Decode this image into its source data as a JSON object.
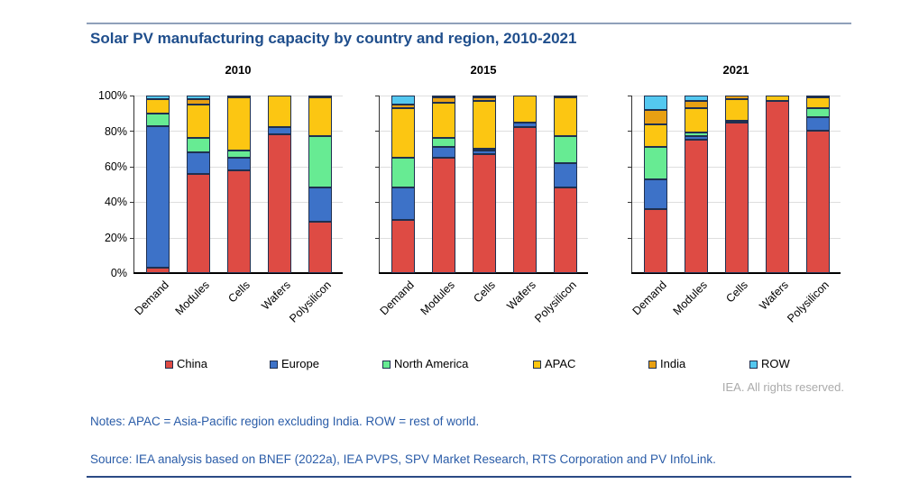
{
  "title": "Solar PV manufacturing capacity by country and region, 2010-2021",
  "copyright": "IEA. All rights reserved.",
  "notes": "Notes: APAC = Asia-Pacific region excluding India. ROW = rest of world.",
  "source": "Source: IEA analysis based on BNEF (2022a), IEA PVPS, SPV Market Research, RTS Corporation and PV InfoLink.",
  "legend": {
    "items": [
      {
        "label": "China",
        "color": "#de4b44"
      },
      {
        "label": "Europe",
        "color": "#3d72c8"
      },
      {
        "label": "North America",
        "color": "#67eb93"
      },
      {
        "label": "APAC",
        "color": "#fcc612"
      },
      {
        "label": "India",
        "color": "#e8a013"
      },
      {
        "label": "ROW",
        "color": "#54c8f0"
      }
    ]
  },
  "chart_data": {
    "type": "bar",
    "stacked": true,
    "unit": "% share",
    "grid": true,
    "legend_position": "bottom",
    "ylim": [
      0,
      100
    ],
    "yticks": [
      "0%",
      "20%",
      "40%",
      "60%",
      "80%",
      "100%"
    ],
    "categories": [
      "Demand",
      "Modules",
      "Cells",
      "Wafers",
      "Polysilicon"
    ],
    "regions": [
      "China",
      "Europe",
      "North America",
      "APAC",
      "India",
      "ROW"
    ],
    "region_colors": {
      "China": "#de4b44",
      "Europe": "#3d72c8",
      "North America": "#67eb93",
      "APAC": "#fcc612",
      "India": "#e8a013",
      "ROW": "#54c8f0"
    },
    "panels": [
      {
        "title": "2010",
        "series": {
          "China": [
            3,
            56,
            58,
            78,
            29
          ],
          "Europe": [
            80,
            12,
            7,
            4,
            19
          ],
          "North America": [
            7,
            8,
            4,
            0,
            29
          ],
          "APAC": [
            8,
            19,
            30,
            18,
            22
          ],
          "India": [
            0,
            3,
            1,
            0,
            0
          ],
          "ROW": [
            2,
            2,
            0,
            0,
            1
          ]
        }
      },
      {
        "title": "2015",
        "series": {
          "China": [
            30,
            65,
            67,
            82,
            48
          ],
          "Europe": [
            18,
            6,
            2,
            3,
            14
          ],
          "North America": [
            17,
            5,
            1,
            0,
            15
          ],
          "APAC": [
            28,
            20,
            27,
            15,
            22
          ],
          "India": [
            2,
            3,
            2,
            0,
            1
          ],
          "ROW": [
            5,
            1,
            1,
            0,
            0
          ]
        }
      },
      {
        "title": "2021",
        "series": {
          "China": [
            36,
            75,
            85,
            97,
            80
          ],
          "Europe": [
            17,
            2,
            1,
            0,
            8
          ],
          "North America": [
            18,
            2,
            0,
            0,
            5
          ],
          "APAC": [
            13,
            14,
            12,
            3,
            6
          ],
          "India": [
            8,
            4,
            2,
            0,
            0
          ],
          "ROW": [
            8,
            3,
            0,
            0,
            1
          ]
        }
      }
    ]
  }
}
